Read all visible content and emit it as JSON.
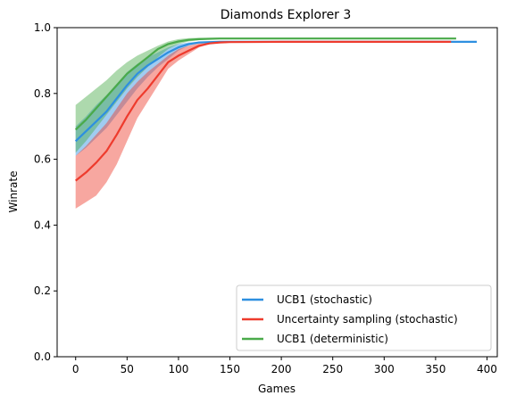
{
  "chart_data": {
    "type": "line",
    "title": "Diamonds Explorer 3",
    "xlabel": "Games",
    "ylabel": "Winrate",
    "xlim": [
      -18,
      410
    ],
    "ylim": [
      0.0,
      1.0
    ],
    "xticks": [
      0,
      50,
      100,
      150,
      200,
      250,
      300,
      350,
      400
    ],
    "xtick_labels": [
      "0",
      "50",
      "100",
      "150",
      "200",
      "250",
      "300",
      "350",
      "400"
    ],
    "yticks": [
      0.0,
      0.2,
      0.4,
      0.6,
      0.8,
      1.0
    ],
    "ytick_labels": [
      "0.0",
      "0.2",
      "0.4",
      "0.6",
      "0.8",
      "1.0"
    ],
    "grid": false,
    "legend_position": "lower-right",
    "series": [
      {
        "name": "UCB1 (stochastic)",
        "color": "#2d8fe0",
        "x": [
          0,
          10,
          20,
          30,
          40,
          50,
          60,
          70,
          80,
          90,
          100,
          110,
          120,
          130,
          140,
          150,
          200,
          300,
          390
        ],
        "y": [
          0.655,
          0.685,
          0.715,
          0.745,
          0.785,
          0.825,
          0.86,
          0.885,
          0.905,
          0.925,
          0.94,
          0.95,
          0.955,
          0.956,
          0.957,
          0.957,
          0.957,
          0.957,
          0.957
        ],
        "lower": [
          0.61,
          0.635,
          0.665,
          0.695,
          0.735,
          0.775,
          0.815,
          0.85,
          0.88,
          0.905,
          0.93,
          0.945,
          0.952,
          0.955,
          0.956,
          0.956,
          0.957,
          0.957,
          0.957
        ],
        "upper": [
          0.7,
          0.73,
          0.765,
          0.795,
          0.83,
          0.865,
          0.89,
          0.91,
          0.925,
          0.94,
          0.95,
          0.955,
          0.957,
          0.958,
          0.958,
          0.958,
          0.958,
          0.958,
          0.958
        ]
      },
      {
        "name": "Uncertainty sampling (stochastic)",
        "color": "#ee3b2d",
        "x": [
          0,
          10,
          20,
          30,
          40,
          50,
          60,
          70,
          80,
          90,
          100,
          110,
          120,
          130,
          140,
          150,
          200,
          300,
          365
        ],
        "y": [
          0.535,
          0.56,
          0.59,
          0.625,
          0.675,
          0.73,
          0.78,
          0.815,
          0.855,
          0.895,
          0.915,
          0.93,
          0.945,
          0.952,
          0.955,
          0.956,
          0.957,
          0.957,
          0.957
        ],
        "lower": [
          0.45,
          0.47,
          0.49,
          0.53,
          0.585,
          0.655,
          0.725,
          0.775,
          0.825,
          0.875,
          0.9,
          0.92,
          0.94,
          0.95,
          0.954,
          0.955,
          0.956,
          0.957,
          0.957
        ],
        "upper": [
          0.61,
          0.64,
          0.675,
          0.71,
          0.755,
          0.8,
          0.835,
          0.865,
          0.89,
          0.915,
          0.935,
          0.945,
          0.952,
          0.955,
          0.957,
          0.957,
          0.957,
          0.957,
          0.957
        ]
      },
      {
        "name": "UCB1 (deterministic)",
        "color": "#4aaa4a",
        "x": [
          0,
          10,
          20,
          30,
          40,
          50,
          60,
          70,
          80,
          90,
          100,
          110,
          120,
          130,
          140,
          150,
          200,
          300,
          370
        ],
        "y": [
          0.69,
          0.72,
          0.755,
          0.79,
          0.825,
          0.86,
          0.885,
          0.91,
          0.935,
          0.95,
          0.958,
          0.963,
          0.965,
          0.966,
          0.967,
          0.967,
          0.967,
          0.967,
          0.967
        ],
        "lower": [
          0.62,
          0.655,
          0.695,
          0.735,
          0.775,
          0.815,
          0.85,
          0.88,
          0.91,
          0.935,
          0.95,
          0.958,
          0.962,
          0.964,
          0.965,
          0.966,
          0.967,
          0.967,
          0.967
        ],
        "upper": [
          0.765,
          0.79,
          0.815,
          0.84,
          0.87,
          0.895,
          0.915,
          0.93,
          0.945,
          0.958,
          0.965,
          0.968,
          0.969,
          0.969,
          0.969,
          0.969,
          0.969,
          0.969,
          0.969
        ]
      }
    ]
  }
}
